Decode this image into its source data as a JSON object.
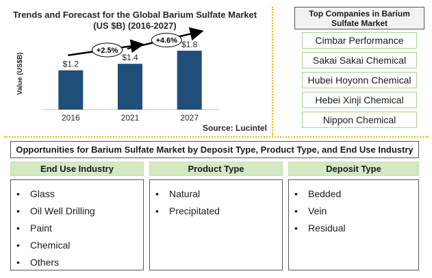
{
  "chart_data": {
    "type": "bar",
    "title_lines": [
      "Trends and Forecast for the Global Barium Sulfate Market",
      "(US $B) (2016-2027)"
    ],
    "ylabel": "Value (US$B)",
    "categories": [
      "2016",
      "2021",
      "2027"
    ],
    "values": [
      1.2,
      1.4,
      1.8
    ],
    "value_labels": [
      "$1.2",
      "$1.4",
      "$1.8"
    ],
    "ylim": [
      0,
      2.2
    ],
    "bar_color": "#1f4e79",
    "growth": [
      {
        "from": "2016",
        "to": "2021",
        "label": "+2.5%"
      },
      {
        "from": "2021",
        "to": "2027",
        "label": "+4.6%"
      }
    ]
  },
  "source": "Source: Lucintel",
  "companies": {
    "title": "Top Companies in Barium Sulfate Market",
    "items": [
      "Cimbar Performance",
      "Sakai Sakai Chemical",
      "Hubei Hoyonn Chemical",
      "Hebei Xinji Chemical",
      "Nippon Chemical"
    ]
  },
  "opportunities": {
    "title": "Opportunities for Barium Sulfate Market by Deposit Type, Product Type, and End Use Industry",
    "segments": [
      {
        "header": "End Use Industry",
        "items": [
          "Glass",
          "Oil Well Drilling",
          "Paint",
          "Chemical",
          "Others"
        ]
      },
      {
        "header": "Product Type",
        "items": [
          "Natural",
          "Precipitated"
        ]
      },
      {
        "header": "Deposit Type",
        "items": [
          "Bedded",
          "Vein",
          "Residual"
        ]
      }
    ]
  },
  "colors": {
    "divider": "#e6b800",
    "segment_header_bg": "#d5e8c4",
    "company_border": "#a9d18e"
  }
}
